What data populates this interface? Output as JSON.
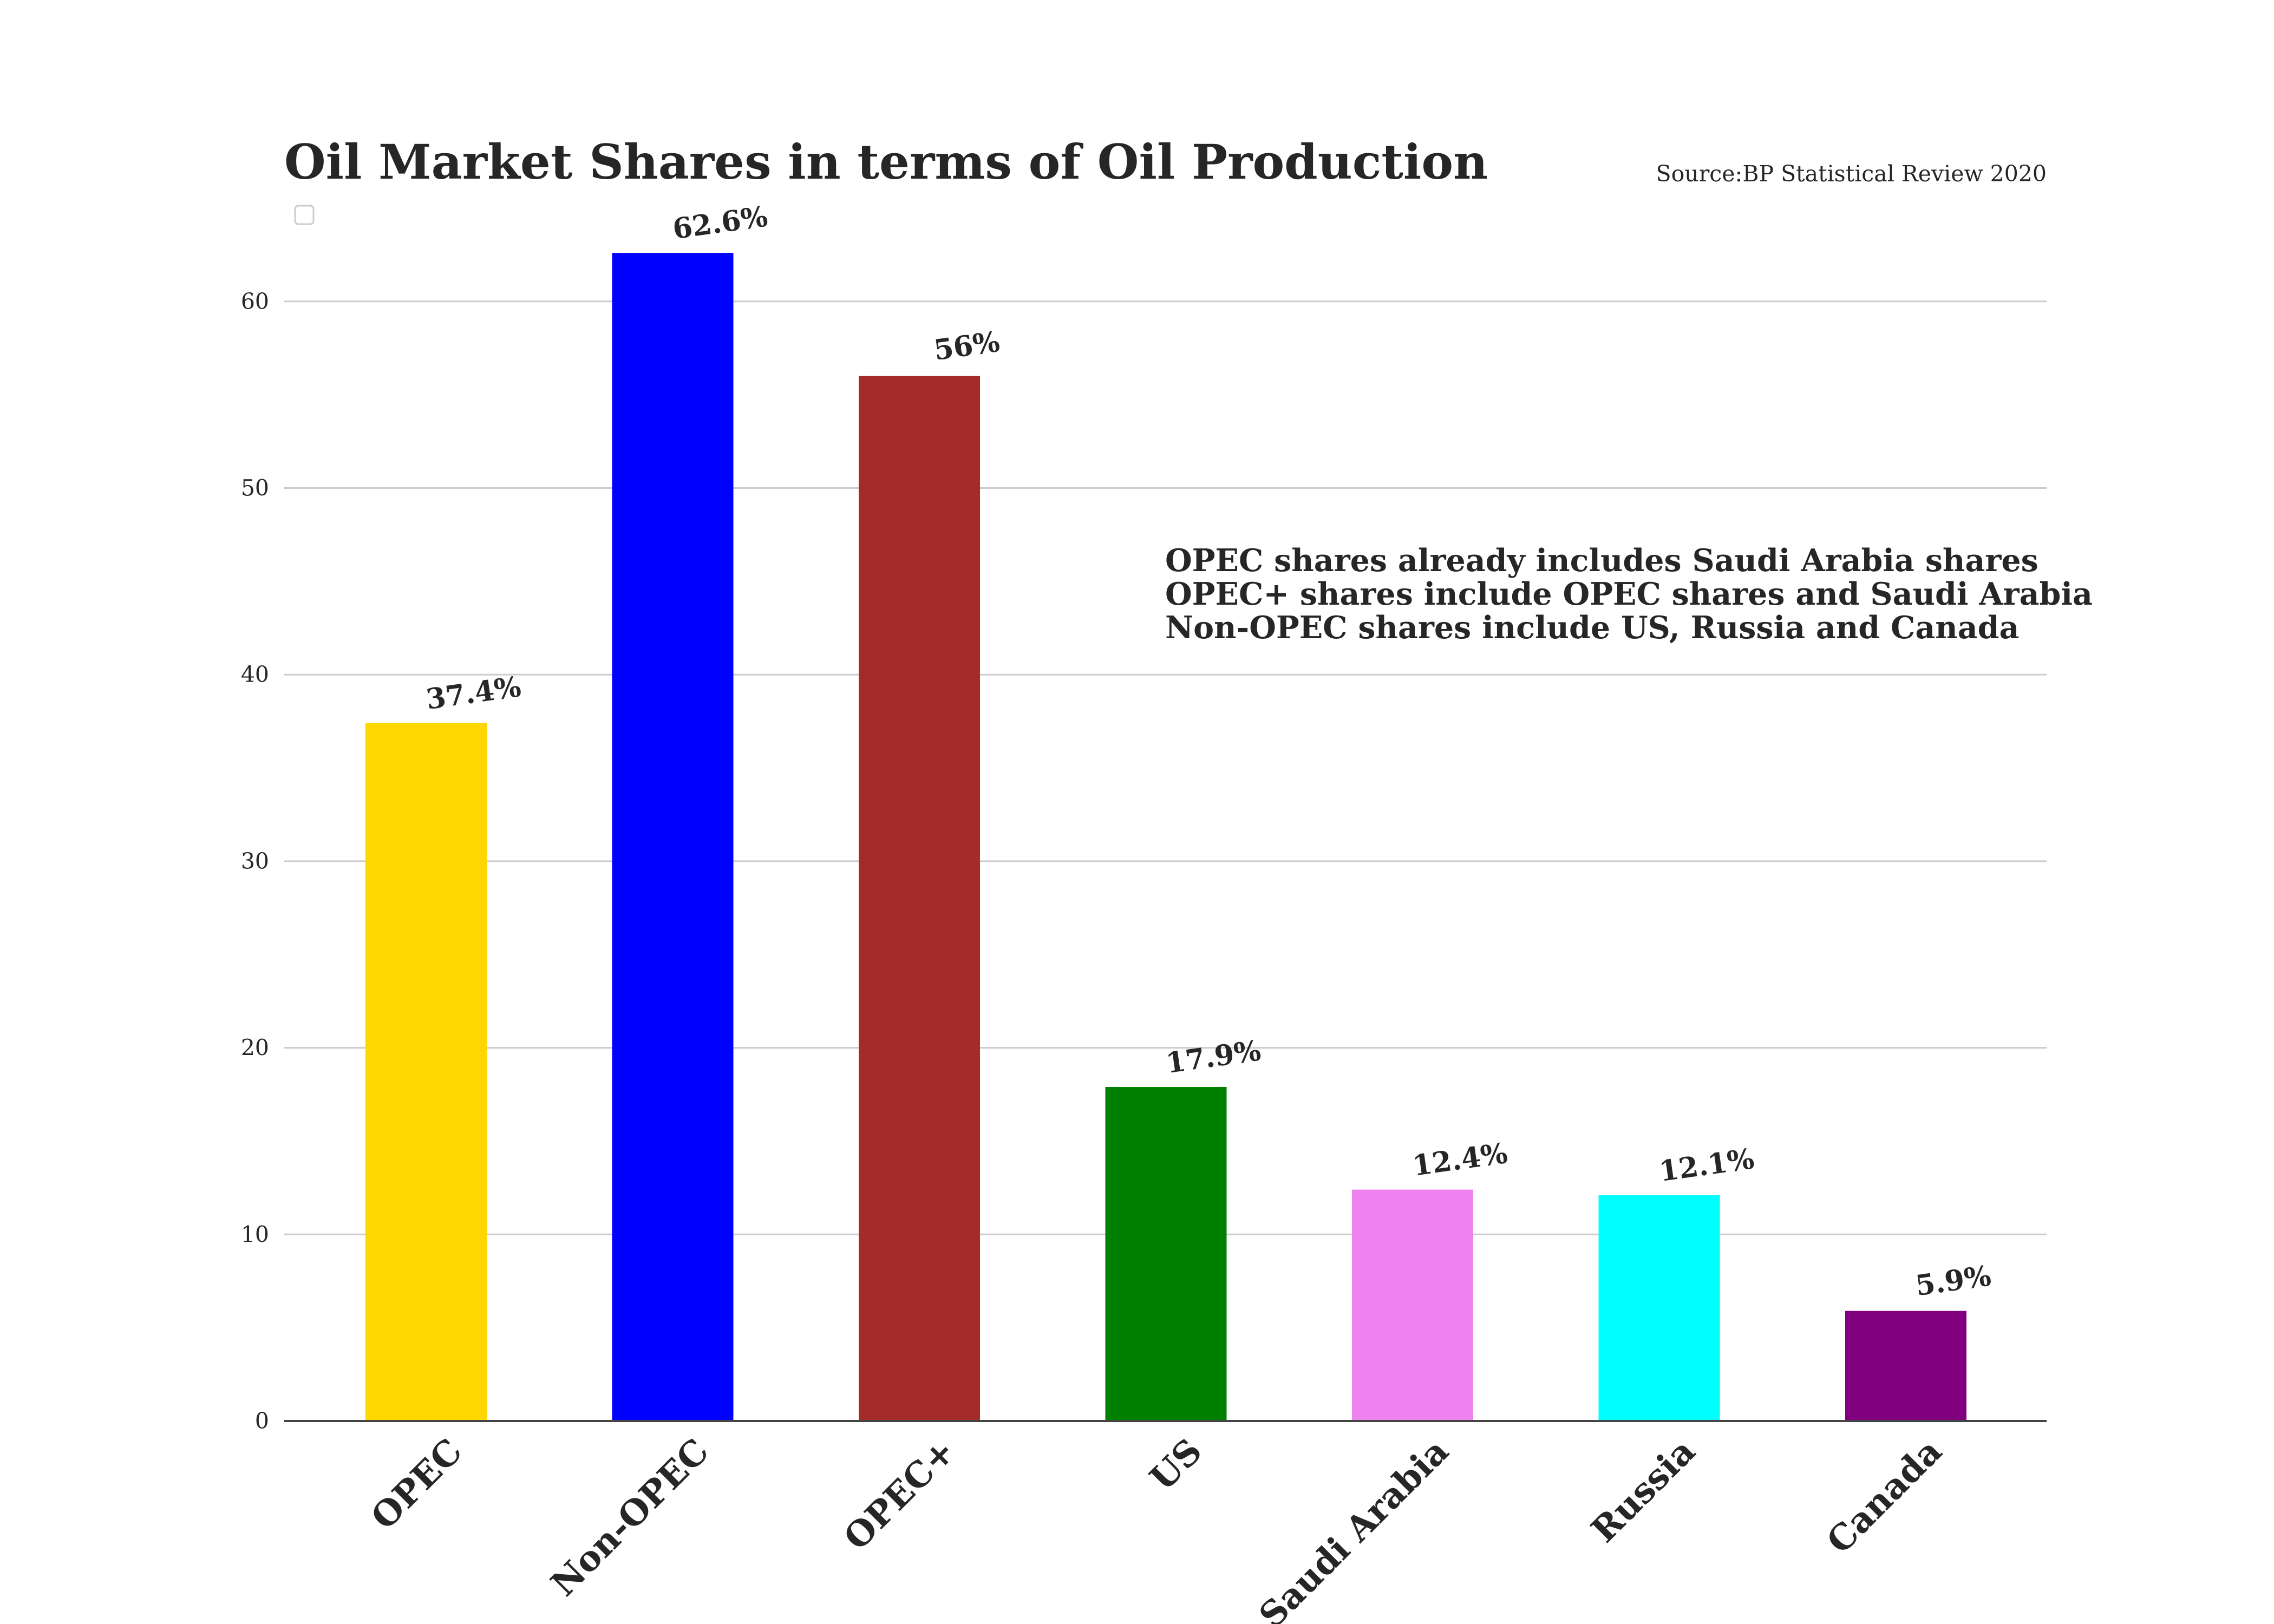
{
  "chart_data": {
    "type": "bar",
    "title": "Oil Market Shares in terms of Oil Production",
    "source": "Source:BP Statistical Review 2020",
    "categories": [
      "OPEC",
      "Non-OPEC",
      "OPEC+",
      "US",
      "Saudi Arabia",
      "Russia",
      "Canada"
    ],
    "values": [
      37.4,
      62.6,
      56,
      17.9,
      12.4,
      12.1,
      5.9
    ],
    "data_labels": [
      "37.4%",
      "62.6%",
      "56%",
      "17.9%",
      "12.4%",
      "12.1%",
      "5.9%"
    ],
    "colors": [
      "#ffd700",
      "#0000ff",
      "#a52a2a",
      "#008000",
      "#ee82ee",
      "#00ffff",
      "#800080"
    ],
    "xlabel": "",
    "ylabel": "",
    "ylim": [
      0,
      66
    ],
    "yticks": [
      0,
      10,
      20,
      30,
      40,
      50,
      60
    ],
    "grid": true,
    "legend": "top-left, empty",
    "annotations": [
      "OPEC shares already includes Saudi Arabia shares",
      "OPEC+ shares include OPEC shares and Saudi Arabia",
      "Non-OPEC shares include US, Russia and Canada"
    ]
  }
}
